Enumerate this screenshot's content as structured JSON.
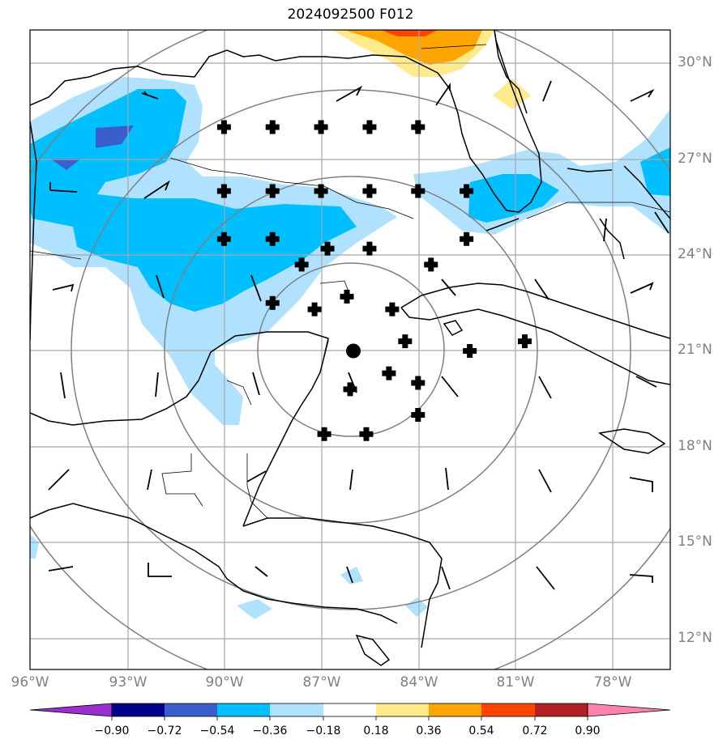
{
  "title": "2024092500 F012",
  "lat_labels": [
    "30°N",
    "27°N",
    "24°N",
    "21°N",
    "18°N",
    "15°N",
    "12°N"
  ],
  "lon_labels": [
    "96°W",
    "93°W",
    "90°W",
    "87°W",
    "84°W",
    "81°W",
    "78°W"
  ],
  "colorbar": {
    "ticks": [
      "−0.90",
      "−0.72",
      "−0.54",
      "−0.36",
      "−0.18",
      "0.18",
      "0.36",
      "0.54",
      "0.72",
      "0.90"
    ],
    "colors": [
      "#9b30d0",
      "#00008b",
      "#3a5fcd",
      "#00bfff",
      "#b0e2ff",
      "#ffffff",
      "#ffeb8c",
      "#ffa500",
      "#ff4500",
      "#b22222",
      "#ff82ab"
    ]
  },
  "center_marker": {
    "lat": 21.0,
    "lon": -86.0
  },
  "ensemble_markers": [
    {
      "lat": 28.0,
      "lon": -90.0
    },
    {
      "lat": 28.0,
      "lon": -88.5
    },
    {
      "lat": 28.0,
      "lon": -87.0
    },
    {
      "lat": 28.0,
      "lon": -85.5
    },
    {
      "lat": 28.0,
      "lon": -84.0
    },
    {
      "lat": 26.0,
      "lon": -90.0
    },
    {
      "lat": 26.0,
      "lon": -88.5
    },
    {
      "lat": 26.0,
      "lon": -87.0
    },
    {
      "lat": 26.0,
      "lon": -85.5
    },
    {
      "lat": 26.0,
      "lon": -84.0
    },
    {
      "lat": 26.0,
      "lon": -82.5
    },
    {
      "lat": 24.5,
      "lon": -90.0
    },
    {
      "lat": 24.5,
      "lon": -88.5
    },
    {
      "lat": 24.5,
      "lon": -82.5
    },
    {
      "lat": 24.2,
      "lon": -86.8
    },
    {
      "lat": 24.2,
      "lon": -85.5
    },
    {
      "lat": 23.7,
      "lon": -87.6
    },
    {
      "lat": 23.7,
      "lon": -83.6
    },
    {
      "lat": 22.7,
      "lon": -86.2
    },
    {
      "lat": 22.5,
      "lon": -88.5
    },
    {
      "lat": 22.3,
      "lon": -87.2
    },
    {
      "lat": 22.3,
      "lon": -84.8
    },
    {
      "lat": 21.3,
      "lon": -84.4
    },
    {
      "lat": 21.0,
      "lon": -82.4
    },
    {
      "lat": 21.3,
      "lon": -80.7
    },
    {
      "lat": 20.3,
      "lon": -84.9
    },
    {
      "lat": 20.0,
      "lon": -84.0
    },
    {
      "lat": 19.8,
      "lon": -86.1
    },
    {
      "lat": 19.0,
      "lon": -84.0
    },
    {
      "lat": 18.4,
      "lon": -86.9
    },
    {
      "lat": 18.4,
      "lon": -85.6
    }
  ]
}
